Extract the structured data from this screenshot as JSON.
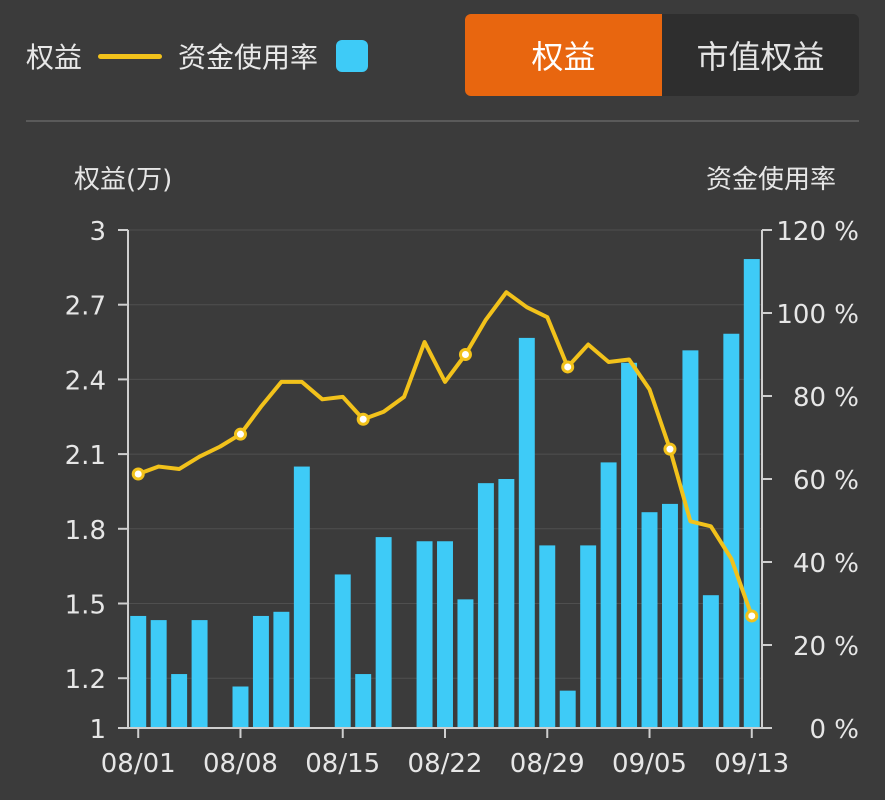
{
  "legend": {
    "line_label": "权益",
    "bar_label": "资金使用率",
    "line_color": "#f2c21b",
    "bar_color": "#3ecbf7"
  },
  "toggle": {
    "options": [
      "权益",
      "市值权益"
    ],
    "active_index": 0,
    "active_color": "#e8660f"
  },
  "chart_data": {
    "type": "bar+line",
    "left_axis_title": "权益(万)",
    "right_axis_title": "资金使用率",
    "left_ticks": [
      "3",
      "2.7",
      "2.4",
      "2.1",
      "1.8",
      "1.5",
      "1.2",
      "1"
    ],
    "right_ticks": [
      "120 %",
      "100 %",
      "80 %",
      "60 %",
      "40 %",
      "20 %",
      "0 %"
    ],
    "x_tick_labels": [
      "08/01",
      "08/08",
      "08/15",
      "08/22",
      "08/29",
      "09/05",
      "09/13"
    ],
    "y_left_range": [
      1,
      3
    ],
    "y_right_range": [
      0,
      120
    ],
    "bar_series": {
      "name": "资金使用率",
      "unit": "%",
      "values": [
        27,
        26,
        13,
        26,
        0,
        10,
        27,
        28,
        63,
        0,
        37,
        13,
        46,
        0,
        45,
        45,
        31,
        59,
        60,
        94,
        44,
        9,
        44,
        64,
        88,
        52,
        54,
        91,
        32,
        95,
        113
      ]
    },
    "line_series": {
      "name": "权益",
      "unit": "万",
      "values": [
        2.02,
        2.05,
        2.04,
        2.09,
        2.13,
        2.18,
        2.29,
        2.39,
        2.39,
        2.32,
        2.33,
        2.24,
        2.27,
        2.33,
        2.55,
        2.39,
        2.5,
        2.64,
        2.75,
        2.69,
        2.65,
        2.45,
        2.54,
        2.47,
        2.48,
        2.36,
        2.12,
        1.83,
        1.81,
        1.68,
        1.45
      ],
      "marked_indices": [
        0,
        5,
        11,
        16,
        21,
        26,
        30
      ]
    }
  }
}
